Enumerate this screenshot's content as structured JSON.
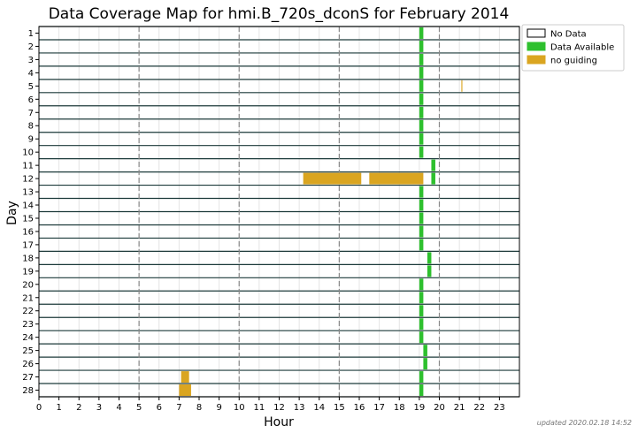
{
  "chart_data": {
    "type": "bar",
    "title": "Data Coverage Map for hmi.B_720s_dconS for February 2014",
    "xlabel": "Hour",
    "ylabel": "Day",
    "xlim": [
      0,
      24
    ],
    "x_ticks": [
      "0",
      "1",
      "2",
      "3",
      "4",
      "5",
      "6",
      "7",
      "8",
      "9",
      "10",
      "11",
      "12",
      "13",
      "14",
      "15",
      "16",
      "17",
      "18",
      "19",
      "20",
      "21",
      "22",
      "23"
    ],
    "days": [
      "1",
      "2",
      "3",
      "4",
      "5",
      "6",
      "7",
      "8",
      "9",
      "10",
      "11",
      "12",
      "13",
      "14",
      "15",
      "16",
      "17",
      "18",
      "19",
      "20",
      "21",
      "22",
      "23",
      "24",
      "25",
      "26",
      "27",
      "28"
    ],
    "major_gridlines_hours": [
      5,
      10,
      15,
      20
    ],
    "legend": {
      "placement": "outside-top-right",
      "entries": [
        {
          "label": "No Data",
          "color": "#ffffff"
        },
        {
          "label": "Data Available",
          "color": "#2ec02e"
        },
        {
          "label": "no guiding",
          "color": "#daa520"
        }
      ]
    },
    "colors": {
      "data_available": "#2ec02e",
      "no_guiding": "#daa520",
      "no_data": "#ffffff",
      "row_line": "#1c3a3a"
    },
    "series": [
      {
        "name": "Data Available",
        "segments": [
          {
            "day": 1,
            "start": 19.0,
            "end": 19.2
          },
          {
            "day": 2,
            "start": 19.0,
            "end": 19.2
          },
          {
            "day": 3,
            "start": 19.0,
            "end": 19.2
          },
          {
            "day": 4,
            "start": 19.0,
            "end": 19.2
          },
          {
            "day": 5,
            "start": 19.0,
            "end": 19.2
          },
          {
            "day": 6,
            "start": 19.0,
            "end": 19.2
          },
          {
            "day": 7,
            "start": 19.0,
            "end": 19.2
          },
          {
            "day": 8,
            "start": 19.0,
            "end": 19.2
          },
          {
            "day": 9,
            "start": 19.0,
            "end": 19.2
          },
          {
            "day": 10,
            "start": 19.0,
            "end": 19.2
          },
          {
            "day": 11,
            "start": 19.6,
            "end": 19.8
          },
          {
            "day": 12,
            "start": 19.6,
            "end": 19.8
          },
          {
            "day": 13,
            "start": 19.0,
            "end": 19.2
          },
          {
            "day": 14,
            "start": 19.0,
            "end": 19.2
          },
          {
            "day": 15,
            "start": 19.0,
            "end": 19.2
          },
          {
            "day": 16,
            "start": 19.0,
            "end": 19.2
          },
          {
            "day": 17,
            "start": 19.0,
            "end": 19.2
          },
          {
            "day": 18,
            "start": 19.4,
            "end": 19.6
          },
          {
            "day": 19,
            "start": 19.4,
            "end": 19.6
          },
          {
            "day": 20,
            "start": 19.0,
            "end": 19.2
          },
          {
            "day": 21,
            "start": 19.0,
            "end": 19.2
          },
          {
            "day": 22,
            "start": 19.0,
            "end": 19.2
          },
          {
            "day": 23,
            "start": 19.0,
            "end": 19.2
          },
          {
            "day": 24,
            "start": 19.0,
            "end": 19.2
          },
          {
            "day": 25,
            "start": 19.2,
            "end": 19.4
          },
          {
            "day": 26,
            "start": 19.2,
            "end": 19.4
          },
          {
            "day": 27,
            "start": 19.0,
            "end": 19.2
          },
          {
            "day": 28,
            "start": 19.0,
            "end": 19.2
          }
        ]
      },
      {
        "name": "no guiding",
        "segments": [
          {
            "day": 5,
            "start": 21.1,
            "end": 21.15
          },
          {
            "day": 12,
            "start": 13.2,
            "end": 16.1
          },
          {
            "day": 12,
            "start": 16.5,
            "end": 19.2
          },
          {
            "day": 27,
            "start": 7.1,
            "end": 7.5
          },
          {
            "day": 28,
            "start": 7.0,
            "end": 7.6
          }
        ]
      }
    ]
  },
  "footer": "updated 2020.02.18 14:52"
}
